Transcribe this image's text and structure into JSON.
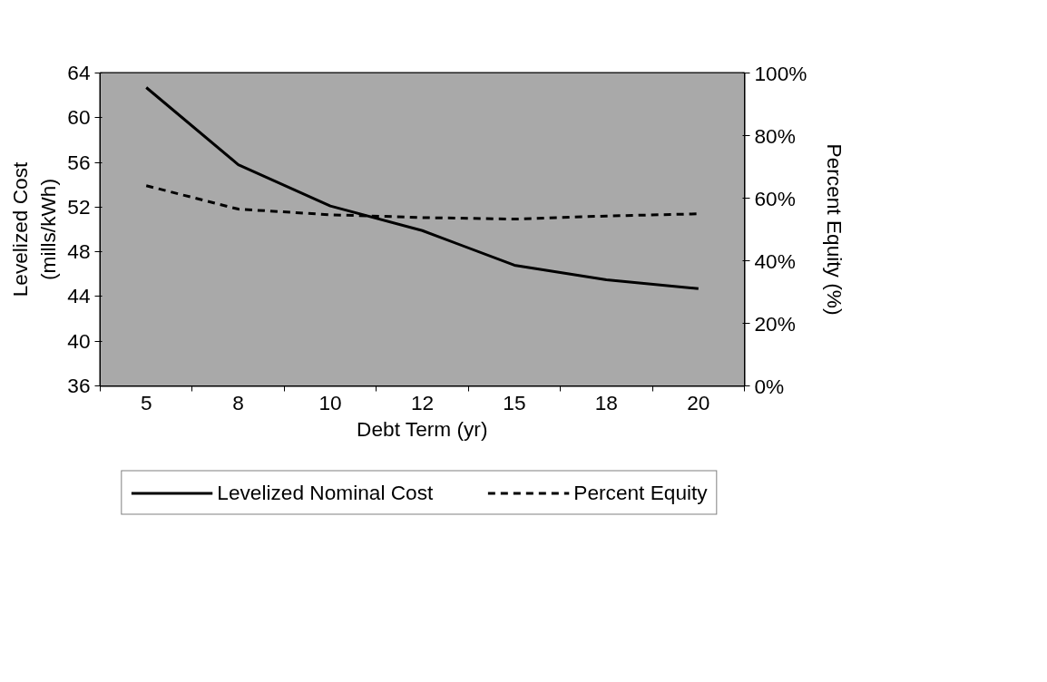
{
  "chart_data": {
    "type": "line",
    "xlabel": "Debt Term (yr)",
    "ylabel": "Levelized Cost\n(mills/kWh)",
    "y2label": "Percent Equity (%)",
    "categories": [
      "5",
      "8",
      "10",
      "12",
      "15",
      "18",
      "20"
    ],
    "series": [
      {
        "name": "Levelized Nominal Cost",
        "color": "#000000",
        "line_style": "solid",
        "values": [
          62.7,
          55.8,
          52.1,
          49.9,
          46.8,
          45.5,
          44.7
        ]
      },
      {
        "name": "Percent Equity",
        "color": "#000000",
        "line_style": "dashed",
        "axis": "y2",
        "values": [
          64,
          56.5,
          54.7,
          53.8,
          53.3,
          54.3,
          55
        ]
      }
    ],
    "ylim": [
      36,
      64
    ],
    "yticks": [
      36,
      40,
      44,
      48,
      52,
      56,
      60,
      64
    ],
    "y2lim": [
      0,
      100
    ],
    "y2ticks": [
      {
        "value": 0,
        "label": "0%"
      },
      {
        "value": 20,
        "label": "20%"
      },
      {
        "value": 40,
        "label": "40%"
      },
      {
        "value": 60,
        "label": "60%"
      },
      {
        "value": 80,
        "label": "80%"
      },
      {
        "value": 100,
        "label": "100%"
      }
    ],
    "grid": false,
    "legend": "bottom",
    "marker": "none"
  }
}
